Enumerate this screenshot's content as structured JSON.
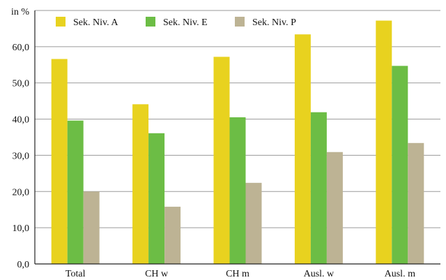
{
  "chart_data": {
    "type": "bar",
    "y_unit_label": "in %",
    "categories": [
      "Total",
      "CH w",
      "CH m",
      "Ausl. w",
      "Ausl. m"
    ],
    "series": [
      {
        "name": "Sek. Niv. A",
        "color": "#e8d21f",
        "values": [
          56.6,
          44.1,
          57.2,
          63.4,
          67.2
        ]
      },
      {
        "name": "Sek. Niv. E",
        "color": "#6cbd45",
        "values": [
          39.6,
          36.1,
          40.5,
          41.9,
          54.7
        ]
      },
      {
        "name": "Sek. Niv. P",
        "color": "#bdb394",
        "values": [
          20.0,
          15.8,
          22.4,
          30.9,
          33.4
        ]
      }
    ],
    "ylim": [
      0,
      70
    ],
    "yticks": [
      0,
      10,
      20,
      30,
      40,
      50,
      60
    ],
    "ytick_labels": [
      "0,0",
      "10,0",
      "20,0",
      "30,0",
      "40,0",
      "50,0",
      "60,0"
    ],
    "grid": true,
    "legend_position": "top-left"
  }
}
